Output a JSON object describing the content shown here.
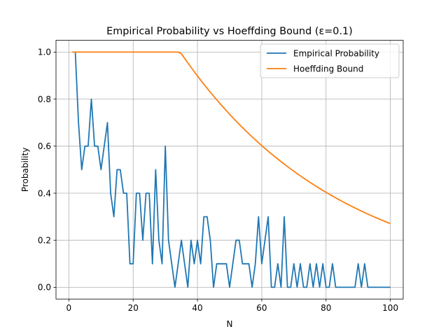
{
  "chart_data": {
    "type": "line",
    "title": "Empirical Probability vs Hoeffding Bound (ε=0.1)",
    "xlabel": "N",
    "ylabel": "Probability",
    "xlim": [
      -4,
      104
    ],
    "ylim": [
      -0.05,
      1.05
    ],
    "xticks": [
      0,
      20,
      40,
      60,
      80,
      100
    ],
    "yticks": [
      0.0,
      0.2,
      0.4,
      0.6,
      0.8,
      1.0
    ],
    "xtick_labels": [
      "0",
      "20",
      "40",
      "60",
      "80",
      "100"
    ],
    "ytick_labels": [
      "0.0",
      "0.2",
      "0.4",
      "0.6",
      "0.8",
      "1.0"
    ],
    "grid": true,
    "legend_position": "top-right",
    "series": [
      {
        "name": "Empirical Probability",
        "color": "#1f77b4",
        "x": [
          2,
          3,
          4,
          5,
          6,
          7,
          8,
          9,
          10,
          11,
          12,
          13,
          14,
          15,
          16,
          17,
          18,
          19,
          20,
          21,
          22,
          23,
          24,
          25,
          26,
          27,
          28,
          29,
          30,
          31,
          32,
          33,
          34,
          35,
          36,
          37,
          38,
          39,
          40,
          41,
          42,
          43,
          44,
          45,
          46,
          47,
          48,
          49,
          50,
          51,
          52,
          53,
          54,
          55,
          56,
          57,
          58,
          59,
          60,
          61,
          62,
          63,
          64,
          65,
          66,
          67,
          68,
          69,
          70,
          71,
          72,
          73,
          74,
          75,
          76,
          77,
          78,
          79,
          80,
          81,
          82,
          83,
          84,
          85,
          86,
          87,
          88,
          89,
          90,
          91,
          92,
          93,
          94,
          95,
          96,
          97,
          98,
          99,
          100
        ],
        "values": [
          1.0,
          0.7,
          0.5,
          0.6,
          0.6,
          0.8,
          0.6,
          0.6,
          0.5,
          0.6,
          0.7,
          0.4,
          0.3,
          0.5,
          0.5,
          0.4,
          0.4,
          0.1,
          0.1,
          0.4,
          0.4,
          0.2,
          0.4,
          0.4,
          0.1,
          0.5,
          0.2,
          0.1,
          0.6,
          0.2,
          0.1,
          0.0,
          0.1,
          0.2,
          0.1,
          0.0,
          0.2,
          0.1,
          0.2,
          0.1,
          0.3,
          0.3,
          0.2,
          0.0,
          0.1,
          0.1,
          0.1,
          0.1,
          0.0,
          0.1,
          0.2,
          0.2,
          0.1,
          0.1,
          0.1,
          0.0,
          0.1,
          0.3,
          0.1,
          0.2,
          0.3,
          0.0,
          0.0,
          0.1,
          0.0,
          0.3,
          0.0,
          0.0,
          0.1,
          0.0,
          0.1,
          0.0,
          0.0,
          0.1,
          0.0,
          0.1,
          0.0,
          0.1,
          0.0,
          0.0,
          0.1,
          0.0,
          0.0,
          0.0,
          0.0,
          0.0,
          0.0,
          0.0,
          0.1,
          0.0,
          0.1,
          0.0,
          0.0,
          0.0,
          0.0,
          0.0,
          0.0,
          0.0,
          0.0
        ]
      },
      {
        "name": "Hoeffding Bound",
        "color": "#ff7f0e",
        "bound_formula": "min(1, 2*exp(-2*N*0.01))",
        "x_range": [
          1,
          100
        ],
        "epsilon": 0.1
      }
    ]
  }
}
